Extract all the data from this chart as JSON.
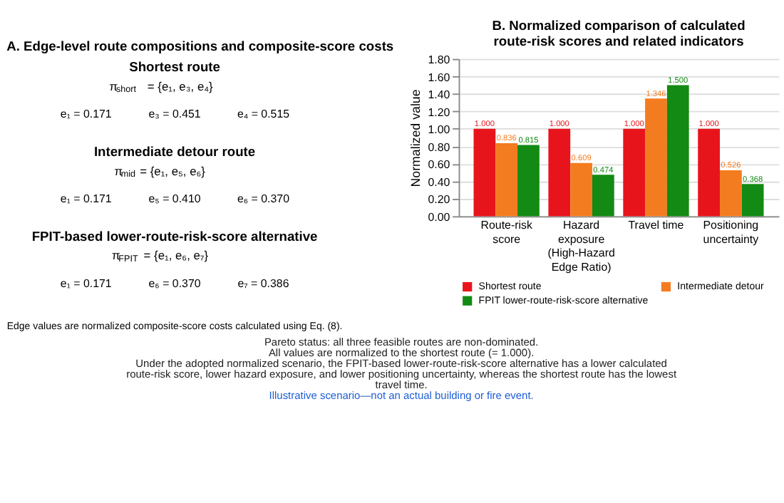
{
  "chart_data": [
    {
      "type": "other",
      "title": "A. Edge-level route compositions and composite-score costs",
      "annotations": [
        "Shortest route",
        "π$_{short}$ = {e₁, e₃, e₄}",
        "e₁ = 0.171",
        "e₃ = 0.451",
        "e₄ = 0.515",
        "Intermediate detour route",
        "π$_{mid}$ = {e₁, e₅, e₆}",
        "e₁ = 0.171",
        "e₅ = 0.410",
        "e₆ = 0.370",
        "FPIT-based lower-route-risk-score alternative",
        "π$_{FPIT}$ = {e₁, e₆, e₇}",
        "e₁ = 0.171",
        "e₆ = 0.370",
        "e₇ = 0.386",
        "Edge values are normalized composite-score costs calculated using Eq. (8)."
      ]
    },
    {
      "type": "bar",
      "title": "B. Normalized comparison of calculated route-risk scores and related indicators",
      "ylabel": "Normalized value",
      "categories": [
        "Route-risk score",
        "Hazard exposure (High-Hazard Edge Ratio)",
        "Travel time",
        "Positioning uncertainty"
      ],
      "series": [
        {
          "name": "Shortest route",
          "color": "#e8141c",
          "values": [
            1.0,
            1.0,
            1.0,
            1.0
          ],
          "value_labels": [
            "1.000",
            "1.000",
            "1.000",
            "1.000"
          ]
        },
        {
          "name": "Intermediate detour",
          "color": "#f47c20",
          "values": [
            0.836,
            0.609,
            1.346,
            0.526
          ],
          "value_labels": [
            "0.836",
            "0.609",
            "1.346",
            "0.526"
          ]
        },
        {
          "name": "FPIT lower-route-risk-score alternative",
          "color": "#138a13",
          "values": [
            0.815,
            0.474,
            1.5,
            0.368
          ],
          "value_labels": [
            "0.815",
            "0.474",
            "1.500",
            "0.368"
          ]
        }
      ],
      "ylim": [
        0,
        1.8
      ],
      "yticks": [
        {
          "value": 0,
          "label": "0.00"
        },
        {
          "value": 0.2,
          "label": "0.20"
        },
        {
          "value": 0.4,
          "label": "0.40"
        },
        {
          "value": 0.6,
          "label": "0.60"
        },
        {
          "value": 0.8,
          "label": "0.80"
        },
        {
          "value": 1.0,
          "label": "1.00"
        },
        {
          "value": 1.2,
          "label": "1.20"
        },
        {
          "value": 1.4,
          "label": "1.40"
        },
        {
          "value": 1.6,
          "label": "1.60"
        },
        {
          "value": 1.8,
          "label": "1.80"
        }
      ],
      "grid": "y",
      "legend": "bottom",
      "annotations": [
        "Pareto status:  all three feasible routes are non-dominated.",
        "All values are normalized to the shortest route (= 1.000).",
        "Under the adopted normalized scenario, the FPIT-based lower-route-risk-score alternative has a lower calculated route-risk score, lower hazard exposure, and lower positioning uncertainty, whereas the shortest route has the lowest travel time.",
        "Illustrative scenario—not an actual building or fire event."
      ]
    }
  ]
}
